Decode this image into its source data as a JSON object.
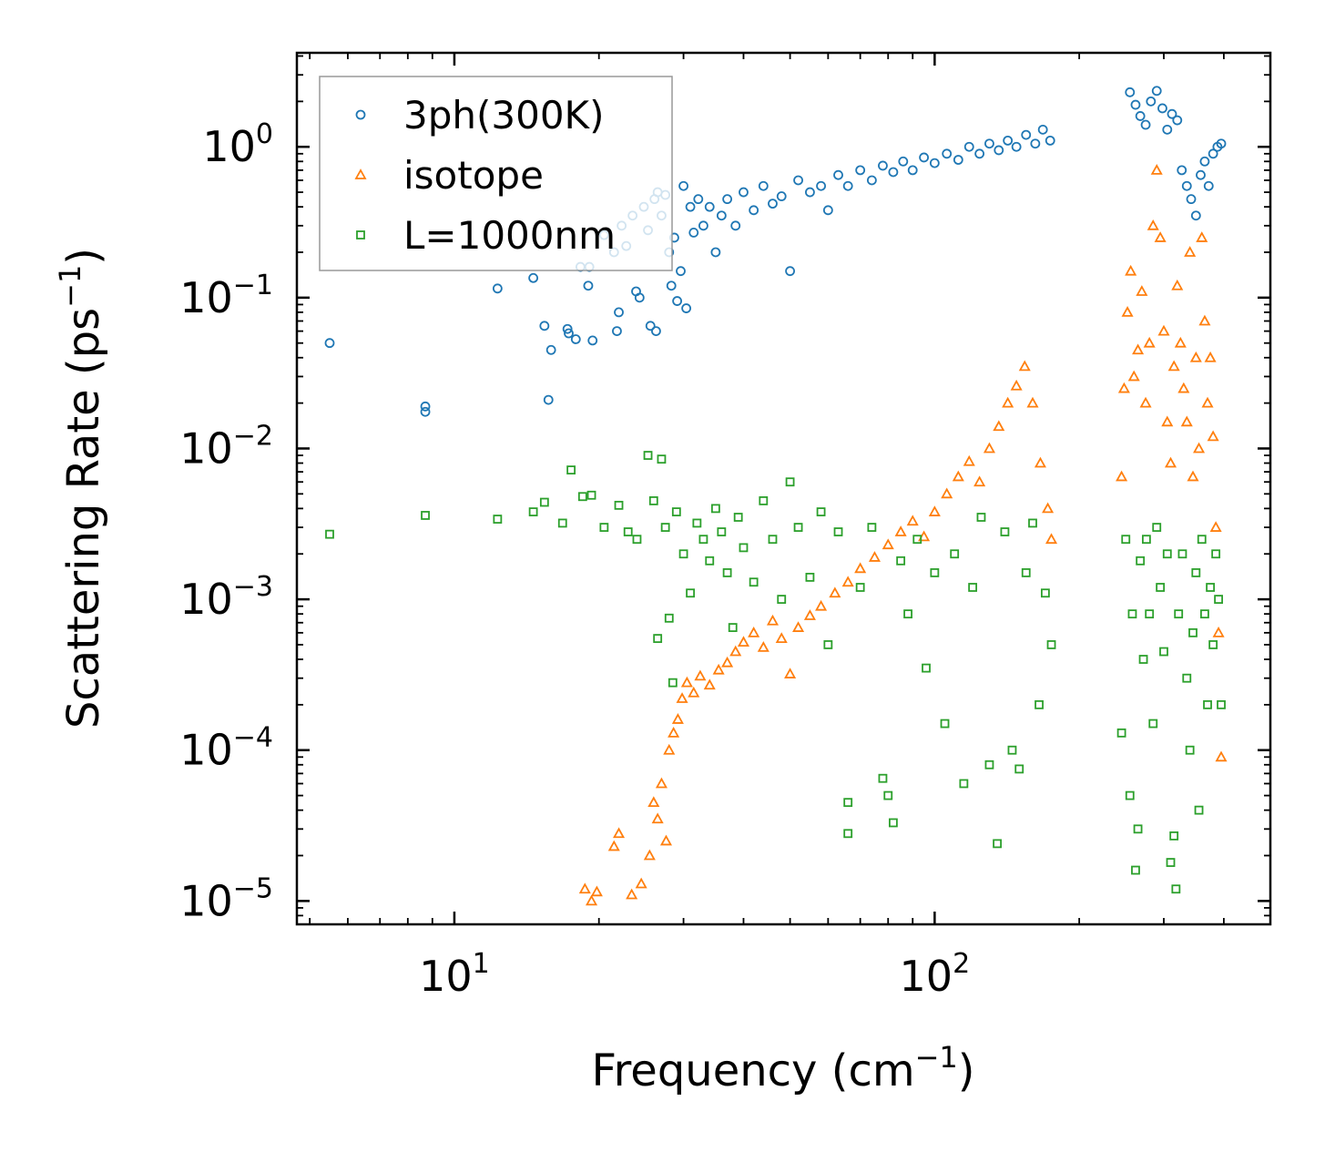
{
  "chart_data": {
    "type": "scatter",
    "xscale": "log",
    "yscale": "log",
    "xlim": [
      4.7,
      500
    ],
    "ylim": [
      7e-06,
      4.2
    ],
    "xlabel": "Frequency (cm",
    "xlabel_sup": "−1",
    "xlabel_end": ")",
    "ylabel": "Scattering Rate (ps",
    "ylabel_sup": "−1",
    "ylabel_end": ")",
    "x_ticks": [
      {
        "value": 10,
        "base": "10",
        "exp": "1"
      },
      {
        "value": 100,
        "base": "10",
        "exp": "2"
      }
    ],
    "y_ticks": [
      {
        "value": 1,
        "base": "10",
        "exp": "0"
      },
      {
        "value": 0.1,
        "base": "10",
        "exp": "−1"
      },
      {
        "value": 0.01,
        "base": "10",
        "exp": "−2"
      },
      {
        "value": 0.001,
        "base": "10",
        "exp": "−3"
      },
      {
        "value": 0.0001,
        "base": "10",
        "exp": "−4"
      },
      {
        "value": 1e-05,
        "base": "10",
        "exp": "−5"
      }
    ],
    "legend_position": "top-left",
    "series": [
      {
        "name": "3ph(300K)",
        "marker": "circle",
        "color": "#1f77b4",
        "points": [
          [
            5.5,
            0.05
          ],
          [
            8.7,
            0.019
          ],
          [
            8.7,
            0.0175
          ],
          [
            12.3,
            0.115
          ],
          [
            14.6,
            0.135
          ],
          [
            15.4,
            0.065
          ],
          [
            15.7,
            0.021
          ],
          [
            15.9,
            0.045
          ],
          [
            17.2,
            0.062
          ],
          [
            17.3,
            0.058
          ],
          [
            17.9,
            0.053
          ],
          [
            18.3,
            0.16
          ],
          [
            19.0,
            0.12
          ],
          [
            19.1,
            0.16
          ],
          [
            19.4,
            0.052
          ],
          [
            20.5,
            0.26
          ],
          [
            21.5,
            0.2
          ],
          [
            21.8,
            0.06
          ],
          [
            22.0,
            0.08
          ],
          [
            22.3,
            0.3
          ],
          [
            22.8,
            0.22
          ],
          [
            23.5,
            0.35
          ],
          [
            23.9,
            0.11
          ],
          [
            24.3,
            0.1
          ],
          [
            24.8,
            0.4
          ],
          [
            25.3,
            0.28
          ],
          [
            25.6,
            0.065
          ],
          [
            26.1,
            0.45
          ],
          [
            26.3,
            0.06
          ],
          [
            26.5,
            0.5
          ],
          [
            27.0,
            0.35
          ],
          [
            27.5,
            0.48
          ],
          [
            28.0,
            0.2
          ],
          [
            28.3,
            0.12
          ],
          [
            28.7,
            0.25
          ],
          [
            29.1,
            0.095
          ],
          [
            29.6,
            0.15
          ],
          [
            30.0,
            0.55
          ],
          [
            30.4,
            0.085
          ],
          [
            31.0,
            0.4
          ],
          [
            31.5,
            0.27
          ],
          [
            32.2,
            0.45
          ],
          [
            33.0,
            0.3
          ],
          [
            34.0,
            0.4
          ],
          [
            35.0,
            0.2
          ],
          [
            36.0,
            0.35
          ],
          [
            37.0,
            0.45
          ],
          [
            38.5,
            0.3
          ],
          [
            40.0,
            0.5
          ],
          [
            42.0,
            0.38
          ],
          [
            44.0,
            0.55
          ],
          [
            46.0,
            0.42
          ],
          [
            48.0,
            0.47
          ],
          [
            50.0,
            0.15
          ],
          [
            52.0,
            0.6
          ],
          [
            55.0,
            0.5
          ],
          [
            58.0,
            0.55
          ],
          [
            60.0,
            0.38
          ],
          [
            63.0,
            0.65
          ],
          [
            66.0,
            0.55
          ],
          [
            70.0,
            0.7
          ],
          [
            74.0,
            0.6
          ],
          [
            78.0,
            0.75
          ],
          [
            82.0,
            0.68
          ],
          [
            86.0,
            0.8
          ],
          [
            90.0,
            0.7
          ],
          [
            95.0,
            0.85
          ],
          [
            100.0,
            0.78
          ],
          [
            106.0,
            0.9
          ],
          [
            112.0,
            0.82
          ],
          [
            118.0,
            1.0
          ],
          [
            124.0,
            0.9
          ],
          [
            130.0,
            1.05
          ],
          [
            136.0,
            0.95
          ],
          [
            142.0,
            1.1
          ],
          [
            148.0,
            1.0
          ],
          [
            155.0,
            1.2
          ],
          [
            162.0,
            1.05
          ],
          [
            168.0,
            1.3
          ],
          [
            174.0,
            1.1
          ],
          [
            255.0,
            2.3
          ],
          [
            262.0,
            1.9
          ],
          [
            268.0,
            1.6
          ],
          [
            275.0,
            1.4
          ],
          [
            282.0,
            2.0
          ],
          [
            290.0,
            2.35
          ],
          [
            298.0,
            1.8
          ],
          [
            305.0,
            1.3
          ],
          [
            312.0,
            1.65
          ],
          [
            320.0,
            1.5
          ],
          [
            327.0,
            0.7
          ],
          [
            335.0,
            0.55
          ],
          [
            342.0,
            0.45
          ],
          [
            350.0,
            0.35
          ],
          [
            358.0,
            0.65
          ],
          [
            365.0,
            0.8
          ],
          [
            372.0,
            0.55
          ],
          [
            380.0,
            0.9
          ],
          [
            388.0,
            1.0
          ],
          [
            395.0,
            1.05
          ]
        ]
      },
      {
        "name": "isotope",
        "marker": "triangle",
        "color": "#ff7f0e",
        "points": [
          [
            18.7,
            1.2e-05
          ],
          [
            19.3,
            1e-05
          ],
          [
            19.8,
            1.15e-05
          ],
          [
            21.5,
            2.3e-05
          ],
          [
            22.0,
            2.8e-05
          ],
          [
            23.4,
            1.1e-05
          ],
          [
            24.5,
            1.3e-05
          ],
          [
            25.5,
            2e-05
          ],
          [
            26.0,
            4.5e-05
          ],
          [
            26.5,
            3.5e-05
          ],
          [
            27.0,
            6e-05
          ],
          [
            27.6,
            2.5e-05
          ],
          [
            28.0,
            0.0001
          ],
          [
            28.6,
            0.00013
          ],
          [
            29.2,
            0.00016
          ],
          [
            29.8,
            0.00022
          ],
          [
            30.5,
            0.00028
          ],
          [
            31.5,
            0.00024
          ],
          [
            32.5,
            0.00031
          ],
          [
            34.0,
            0.00027
          ],
          [
            35.5,
            0.00034
          ],
          [
            37.0,
            0.00038
          ],
          [
            38.5,
            0.00045
          ],
          [
            40.0,
            0.00052
          ],
          [
            42.0,
            0.0006
          ],
          [
            44.0,
            0.00048
          ],
          [
            46.0,
            0.00072
          ],
          [
            48.0,
            0.00055
          ],
          [
            50.0,
            0.00032
          ],
          [
            52.0,
            0.00065
          ],
          [
            55.0,
            0.00078
          ],
          [
            58.0,
            0.0009
          ],
          [
            62.0,
            0.0011
          ],
          [
            66.0,
            0.0013
          ],
          [
            70.0,
            0.0016
          ],
          [
            75.0,
            0.0019
          ],
          [
            80.0,
            0.0023
          ],
          [
            85.0,
            0.0028
          ],
          [
            90.0,
            0.0033
          ],
          [
            95.0,
            0.0026
          ],
          [
            100.0,
            0.0038
          ],
          [
            106.0,
            0.005
          ],
          [
            112.0,
            0.0065
          ],
          [
            118.0,
            0.0082
          ],
          [
            124.0,
            0.006
          ],
          [
            130.0,
            0.01
          ],
          [
            136.0,
            0.014
          ],
          [
            142.0,
            0.02
          ],
          [
            148.0,
            0.026
          ],
          [
            154.0,
            0.035
          ],
          [
            160.0,
            0.02
          ],
          [
            166.0,
            0.008
          ],
          [
            172.0,
            0.004
          ],
          [
            175.0,
            0.0025
          ],
          [
            245.0,
            0.0065
          ],
          [
            248.0,
            0.025
          ],
          [
            252.0,
            0.08
          ],
          [
            256.0,
            0.15
          ],
          [
            260.0,
            0.03
          ],
          [
            265.0,
            0.045
          ],
          [
            270.0,
            0.11
          ],
          [
            275.0,
            0.02
          ],
          [
            280.0,
            0.05
          ],
          [
            285.0,
            0.3
          ],
          [
            290.0,
            0.7
          ],
          [
            295.0,
            0.25
          ],
          [
            300.0,
            0.06
          ],
          [
            305.0,
            0.015
          ],
          [
            310.0,
            0.008
          ],
          [
            315.0,
            0.035
          ],
          [
            320.0,
            0.12
          ],
          [
            325.0,
            0.05
          ],
          [
            330.0,
            0.025
          ],
          [
            335.0,
            0.015
          ],
          [
            340.0,
            0.2
          ],
          [
            345.0,
            0.0065
          ],
          [
            350.0,
            0.04
          ],
          [
            355.0,
            0.01
          ],
          [
            360.0,
            0.25
          ],
          [
            365.0,
            0.07
          ],
          [
            370.0,
            0.02
          ],
          [
            375.0,
            0.04
          ],
          [
            380.0,
            0.012
          ],
          [
            385.0,
            0.003
          ],
          [
            390.0,
            0.0006
          ],
          [
            395.0,
            9e-05
          ]
        ]
      },
      {
        "name": "L=1000nm",
        "marker": "square",
        "color": "#2ca02c",
        "points": [
          [
            5.5,
            0.0027
          ],
          [
            8.7,
            0.0036
          ],
          [
            12.3,
            0.0034
          ],
          [
            14.6,
            0.0038
          ],
          [
            15.4,
            0.0044
          ],
          [
            16.8,
            0.0032
          ],
          [
            17.5,
            0.0072
          ],
          [
            18.5,
            0.0048
          ],
          [
            19.3,
            0.0049
          ],
          [
            20.5,
            0.003
          ],
          [
            22.0,
            0.0042
          ],
          [
            23.0,
            0.0028
          ],
          [
            24.0,
            0.0025
          ],
          [
            25.3,
            0.009
          ],
          [
            26.0,
            0.0045
          ],
          [
            26.5,
            0.00055
          ],
          [
            27.0,
            0.0085
          ],
          [
            27.5,
            0.003
          ],
          [
            28.0,
            0.00075
          ],
          [
            28.5,
            0.00028
          ],
          [
            29.0,
            0.0038
          ],
          [
            30.0,
            0.002
          ],
          [
            31.0,
            0.0011
          ],
          [
            32.0,
            0.0032
          ],
          [
            33.0,
            0.0025
          ],
          [
            34.0,
            0.0018
          ],
          [
            35.0,
            0.004
          ],
          [
            36.0,
            0.0028
          ],
          [
            37.0,
            0.0015
          ],
          [
            38.0,
            0.00065
          ],
          [
            39.0,
            0.0035
          ],
          [
            40.0,
            0.0022
          ],
          [
            42.0,
            0.0013
          ],
          [
            44.0,
            0.0045
          ],
          [
            46.0,
            0.0025
          ],
          [
            48.0,
            0.001
          ],
          [
            50.0,
            0.006
          ],
          [
            52.0,
            0.003
          ],
          [
            55.0,
            0.0014
          ],
          [
            58.0,
            0.0038
          ],
          [
            60.0,
            0.0005
          ],
          [
            63.0,
            0.0028
          ],
          [
            66.0,
            4.5e-05
          ],
          [
            66.0,
            2.8e-05
          ],
          [
            70.0,
            0.0012
          ],
          [
            74.0,
            0.003
          ],
          [
            78.0,
            6.5e-05
          ],
          [
            80.0,
            5e-05
          ],
          [
            82.0,
            3.3e-05
          ],
          [
            85.0,
            0.0018
          ],
          [
            88.0,
            0.0008
          ],
          [
            92.0,
            0.0025
          ],
          [
            96.0,
            0.00035
          ],
          [
            100.0,
            0.0015
          ],
          [
            105.0,
            0.00015
          ],
          [
            110.0,
            0.002
          ],
          [
            115.0,
            6e-05
          ],
          [
            120.0,
            0.0012
          ],
          [
            125.0,
            0.0035
          ],
          [
            130.0,
            8e-05
          ],
          [
            135.0,
            2.4e-05
          ],
          [
            140.0,
            0.0028
          ],
          [
            145.0,
            0.0001
          ],
          [
            150.0,
            7.5e-05
          ],
          [
            155.0,
            0.0015
          ],
          [
            160.0,
            0.0032
          ],
          [
            165.0,
            0.0002
          ],
          [
            170.0,
            0.0011
          ],
          [
            175.0,
            0.0005
          ],
          [
            245.0,
            0.00013
          ],
          [
            250.0,
            0.0025
          ],
          [
            255.0,
            5e-05
          ],
          [
            258.0,
            0.0008
          ],
          [
            262.0,
            1.6e-05
          ],
          [
            265.0,
            3e-05
          ],
          [
            268.0,
            0.0018
          ],
          [
            272.0,
            0.0004
          ],
          [
            276.0,
            0.0025
          ],
          [
            280.0,
            0.0008
          ],
          [
            285.0,
            0.00015
          ],
          [
            290.0,
            0.003
          ],
          [
            295.0,
            0.0012
          ],
          [
            300.0,
            0.00045
          ],
          [
            305.0,
            0.002
          ],
          [
            310.0,
            1.8e-05
          ],
          [
            315.0,
            2.7e-05
          ],
          [
            318.0,
            1.2e-05
          ],
          [
            322.0,
            0.0008
          ],
          [
            328.0,
            0.002
          ],
          [
            335.0,
            0.0003
          ],
          [
            340.0,
            0.0001
          ],
          [
            345.0,
            0.0006
          ],
          [
            350.0,
            0.0015
          ],
          [
            355.0,
            4e-05
          ],
          [
            360.0,
            0.0025
          ],
          [
            365.0,
            0.0008
          ],
          [
            370.0,
            0.0002
          ],
          [
            375.0,
            0.0012
          ],
          [
            380.0,
            0.0005
          ],
          [
            385.0,
            0.002
          ],
          [
            390.0,
            0.001
          ],
          [
            395.0,
            0.0002
          ]
        ]
      }
    ]
  }
}
